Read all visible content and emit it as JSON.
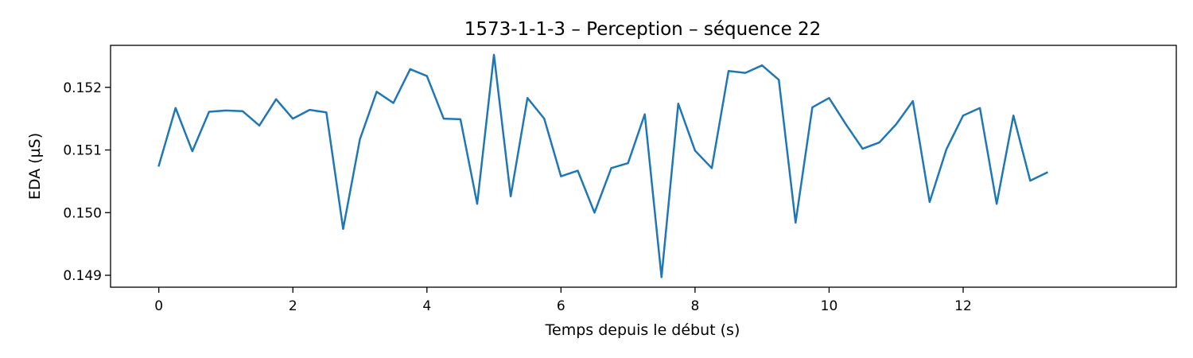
{
  "chart_data": {
    "type": "line",
    "title": "1573-1-1-3 – Perception – séquence 22",
    "xlabel": "Temps depuis le début (s)",
    "ylabel": "EDA (µS)",
    "xlim": [
      -0.72,
      15.18
    ],
    "ylim": [
      0.14881,
      0.15267
    ],
    "x_ticks": [
      0,
      2,
      4,
      6,
      8,
      10,
      12
    ],
    "x_tick_labels": [
      "0",
      "2",
      "4",
      "6",
      "8",
      "10",
      "12"
    ],
    "y_ticks": [
      0.149,
      0.15,
      0.151,
      0.152
    ],
    "y_tick_labels": [
      "0.149",
      "0.150",
      "0.151",
      "0.152"
    ],
    "grid": false,
    "series": [
      {
        "color": "#1f77b4",
        "x": [
          0,
          0.25,
          0.5,
          0.75,
          1,
          1.25,
          1.5,
          1.75,
          2,
          2.25,
          2.5,
          2.75,
          3,
          3.25,
          3.5,
          3.75,
          4,
          4.25,
          4.5,
          4.75,
          5,
          5.25,
          5.5,
          5.75,
          6,
          6.25,
          6.5,
          6.75,
          7,
          7.25,
          7.5,
          7.75,
          8,
          8.25,
          8.5,
          8.75,
          9,
          9.25,
          9.5,
          9.75,
          10,
          10.25,
          10.5,
          10.75,
          11,
          11.25,
          11.5,
          11.75,
          12,
          12.25,
          12.5,
          12.75,
          13,
          13.25
        ],
        "y": [
          0.15075,
          0.15167,
          0.15098,
          0.15161,
          0.15163,
          0.15162,
          0.15139,
          0.15181,
          0.1515,
          0.15164,
          0.1516,
          0.14974,
          0.15117,
          0.15193,
          0.15175,
          0.15229,
          0.15218,
          0.1515,
          0.15149,
          0.15014,
          0.15252,
          0.15026,
          0.15183,
          0.1515,
          0.15058,
          0.15067,
          0.15,
          0.15071,
          0.15079,
          0.15157,
          0.14897,
          0.15174,
          0.15099,
          0.15071,
          0.15226,
          0.15223,
          0.15235,
          0.15212,
          0.14984,
          0.15168,
          0.15183,
          0.15141,
          0.15102,
          0.15112,
          0.15141,
          0.15178,
          0.15017,
          0.15101,
          0.15155,
          0.15167,
          0.15014,
          0.15155,
          0.15051,
          0.15064
        ]
      }
    ]
  }
}
